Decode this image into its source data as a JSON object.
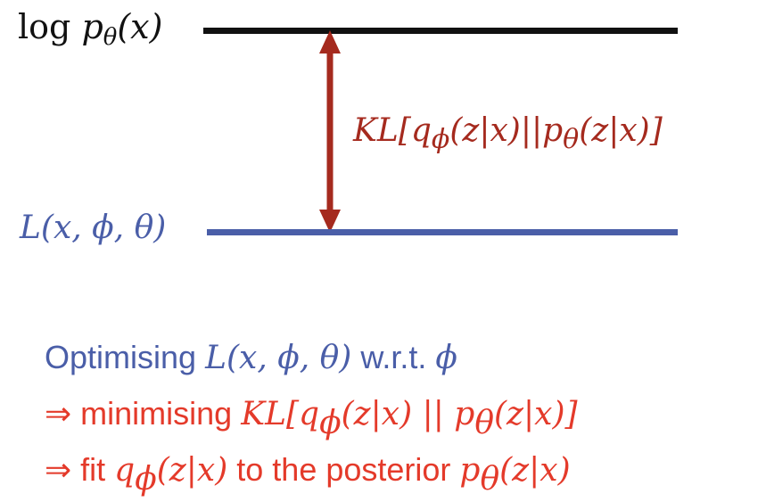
{
  "colors": {
    "black": "#111111",
    "blue": "#4a5ea8",
    "dark_red": "#a52a1e",
    "bright_red": "#e43a2a"
  },
  "diagram": {
    "top_label": {
      "prefix": "log",
      "p": "p",
      "sub": "θ",
      "arg": "(x)"
    },
    "bottom_label": "L(x, ϕ, θ)",
    "gap_label": {
      "a": "KL[q",
      "sub1": "ϕ",
      "b": "(z|x)||p",
      "sub2": "θ",
      "c": "(z|x)]"
    }
  },
  "explanation": {
    "line1": {
      "t1": "Optimising ",
      "m1": "L(x, ϕ, θ)",
      "t2": " w.r.t. ",
      "m2": "ϕ"
    },
    "line2": {
      "t1": "⇒ minimising ",
      "m1a": "KL[q",
      "sub1": "ϕ",
      "m1b": "(z|x) || p",
      "sub2": "θ",
      "m1c": "(z|x)]"
    },
    "line3": {
      "t1": "⇒ fit ",
      "m1a": "q",
      "sub1": "ϕ",
      "m1b": "(z|x)",
      "t2": " to the posterior ",
      "m2a": "p",
      "sub2": "θ",
      "m2b": "(z|x)"
    }
  }
}
